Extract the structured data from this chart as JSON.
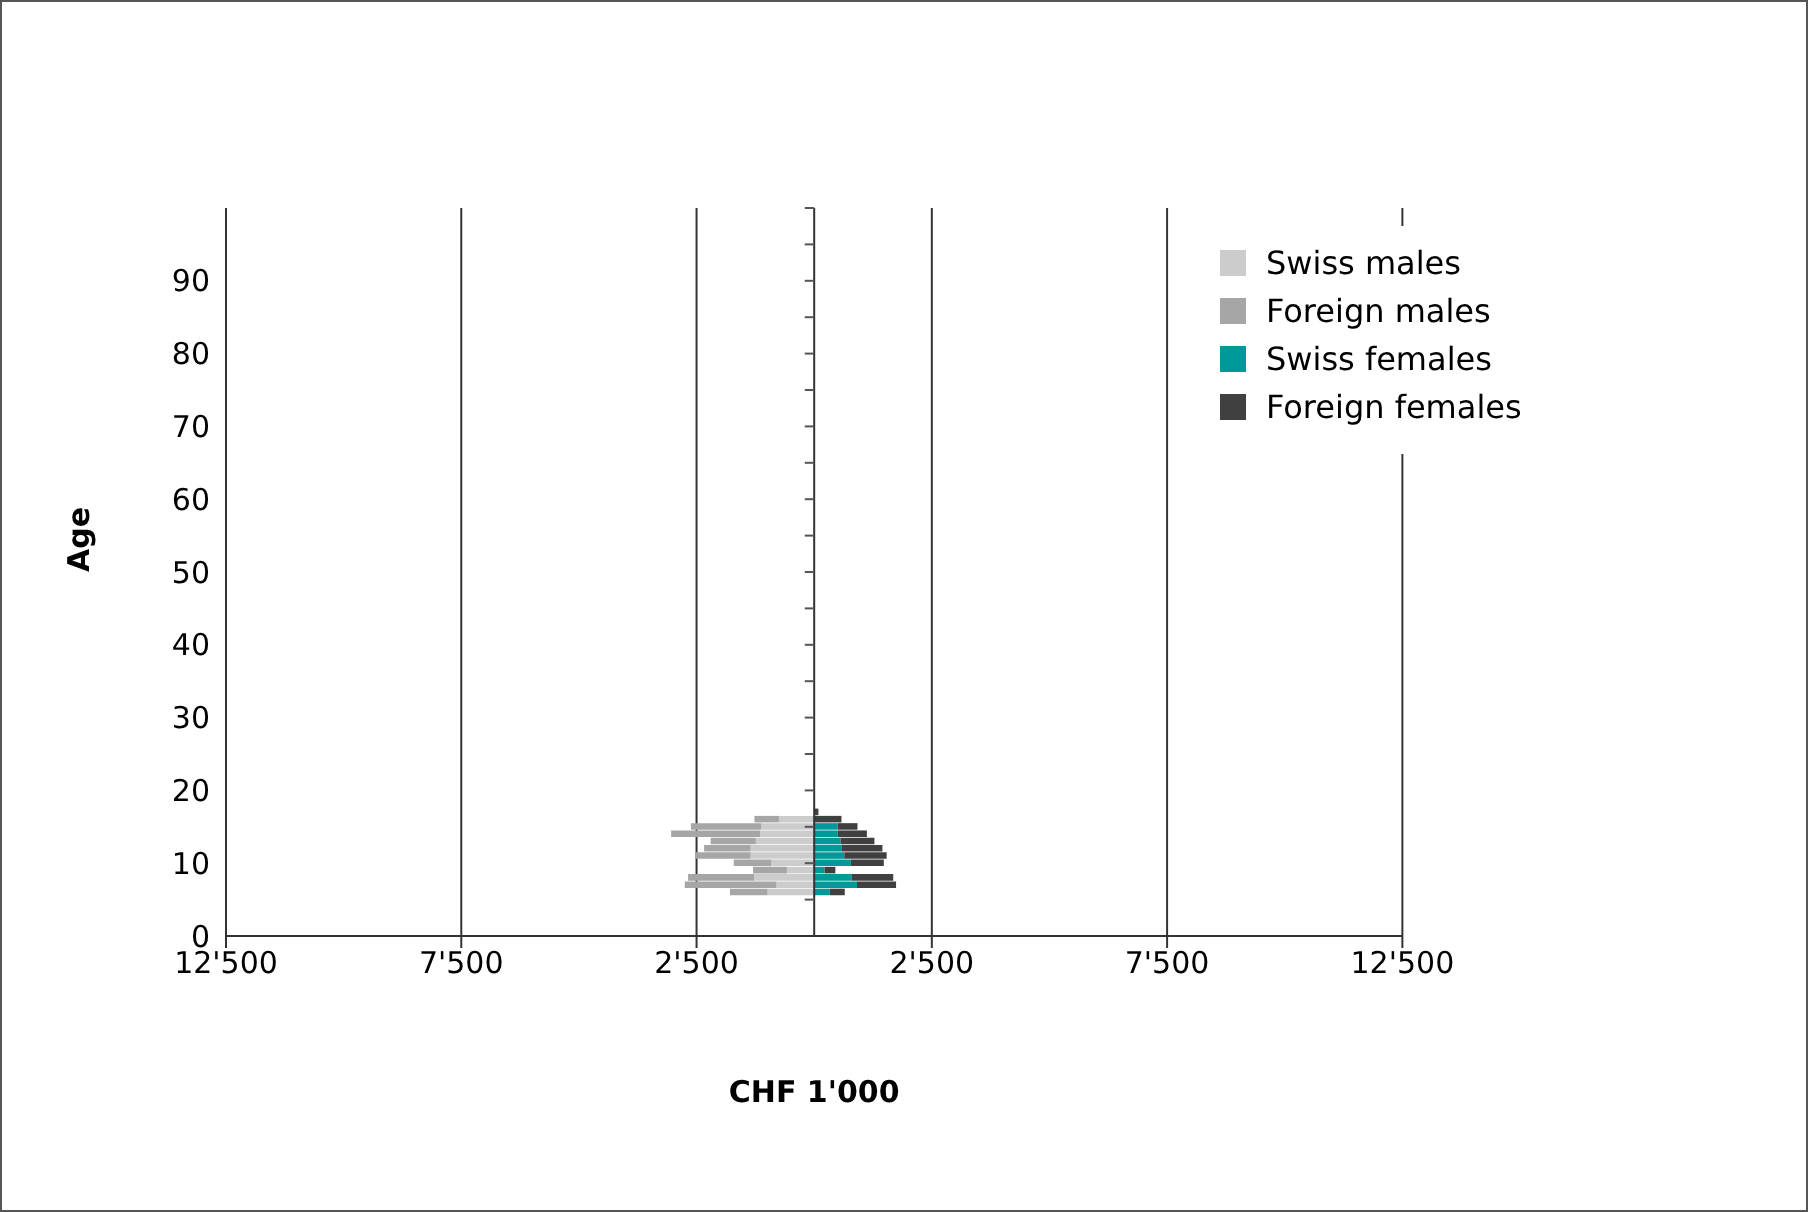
{
  "chart_data": {
    "type": "bar",
    "orientation": "horizontal",
    "stacked": true,
    "xlabel": "CHF 1'000",
    "ylabel": "Age",
    "x": [
      17,
      16,
      15,
      14,
      13,
      12,
      11,
      10,
      9,
      8,
      7,
      6
    ],
    "series": [
      {
        "name": "Swiss males",
        "color": "#cccccc",
        "values": [
          null,
          -750,
          -1130,
          -1150,
          -1240,
          -1350,
          -1350,
          -910,
          -580,
          -1280,
          -800,
          -990
        ]
      },
      {
        "name": "Foreign males",
        "color": "#a6a6a6",
        "values": [
          null,
          -520,
          -1490,
          -1890,
          -960,
          -990,
          -1180,
          -800,
          -720,
          -1400,
          -1950,
          -800
        ]
      },
      {
        "name": "Swiss females",
        "color": "#009999",
        "values": [
          null,
          null,
          500,
          500,
          560,
          590,
          640,
          780,
          220,
          800,
          910,
          330
        ]
      },
      {
        "name": "Foreign females",
        "color": "#404040",
        "values": [
          90,
          580,
          420,
          620,
          720,
          860,
          900,
          700,
          230,
          880,
          830,
          320
        ]
      }
    ],
    "xlim": [
      -12500,
      12500
    ],
    "xticks": [
      {
        "value": -12500,
        "label": "12'500"
      },
      {
        "value": -7500,
        "label": "7'500"
      },
      {
        "value": -2500,
        "label": "2'500"
      },
      {
        "value": 2500,
        "label": "2'500"
      },
      {
        "value": 7500,
        "label": "7'500"
      },
      {
        "value": 12500,
        "label": "12'500"
      }
    ],
    "ylim": [
      0,
      100
    ],
    "yticks": [
      0,
      {
        "value": 5,
        "label": null
      },
      10,
      {
        "value": 15,
        "label": null
      },
      20,
      {
        "value": 25,
        "label": null
      },
      30,
      {
        "value": 35,
        "label": null
      },
      40,
      {
        "value": 45,
        "label": null
      },
      50,
      {
        "value": 55,
        "label": null
      },
      60,
      {
        "value": 65,
        "label": null
      },
      70,
      {
        "value": 75,
        "label": null
      },
      80,
      {
        "value": 85,
        "label": null
      },
      90,
      {
        "value": 95,
        "label": null
      },
      {
        "value": 100,
        "label": null
      }
    ],
    "grid": "x",
    "legend": "top right"
  }
}
